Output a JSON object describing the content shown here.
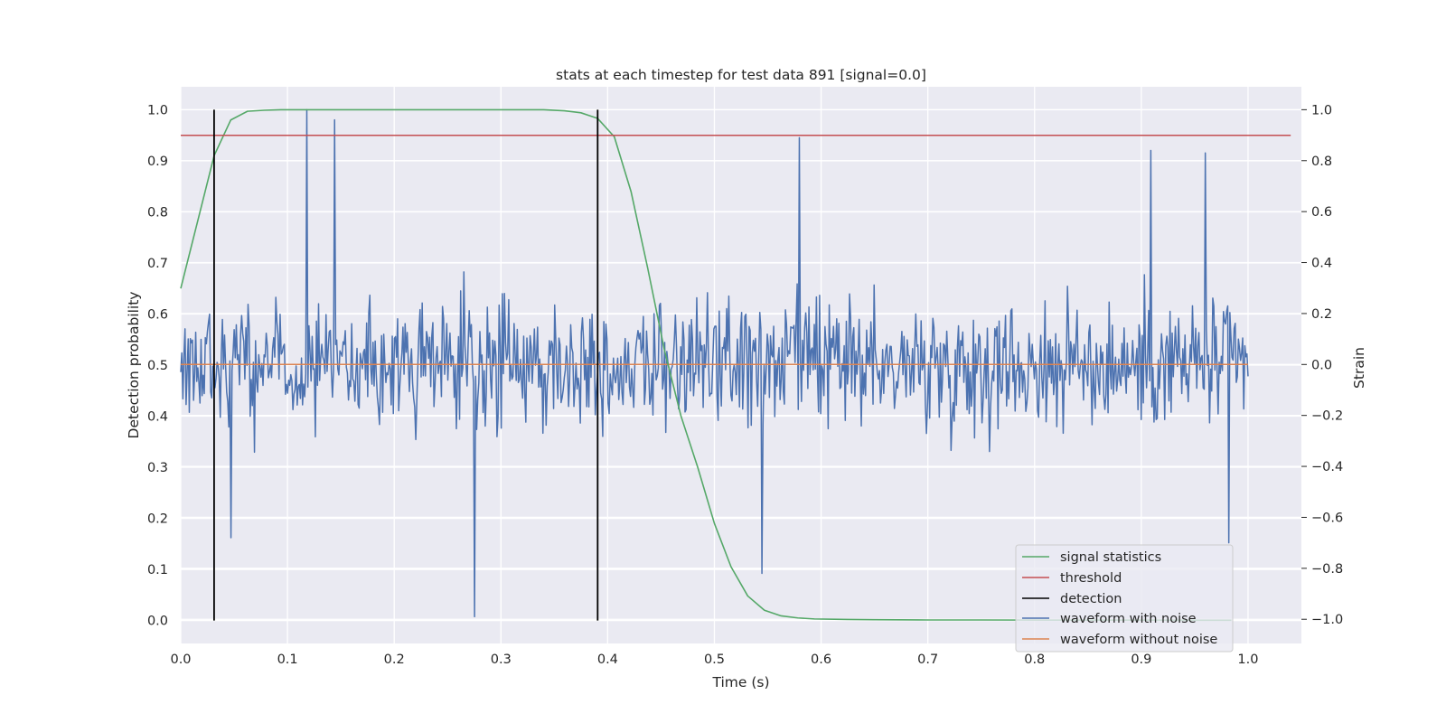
{
  "chart_data": {
    "type": "line",
    "title": "stats at each timestep for test data 891 [signal=0.0]",
    "xlabel": "Time (s)",
    "ylabel_left": "Detection probability",
    "ylabel_right": "Strain",
    "xlim": [
      0.0,
      1.05
    ],
    "ylim_left": [
      -0.045,
      1.045
    ],
    "ylim_right": [
      -1.095,
      1.09
    ],
    "x_ticks": [
      "0.0",
      "0.1",
      "0.2",
      "0.3",
      "0.4",
      "0.5",
      "0.6",
      "0.7",
      "0.8",
      "0.9",
      "1.0"
    ],
    "y_ticks_left": [
      "0.0",
      "0.1",
      "0.2",
      "0.3",
      "0.4",
      "0.5",
      "0.6",
      "0.7",
      "0.8",
      "0.9",
      "1.0"
    ],
    "y_ticks_right": [
      "−1.0",
      "−0.8",
      "−0.6",
      "−0.4",
      "−0.2",
      "0.0",
      "0.2",
      "0.4",
      "0.6",
      "0.8",
      "1.0"
    ],
    "grid": true,
    "legend_position": "lower-right",
    "series": [
      {
        "name": "signal statistics",
        "axis": "left",
        "color": "#55a868",
        "x": [
          0.0,
          0.015625,
          0.03125,
          0.046875,
          0.0625,
          0.078125,
          0.09375,
          0.109375,
          0.125,
          0.15,
          0.2,
          0.25,
          0.3,
          0.34,
          0.359375,
          0.375,
          0.390625,
          0.40625,
          0.421875,
          0.4375,
          0.453125,
          0.46875,
          0.484375,
          0.5,
          0.515625,
          0.53125,
          0.546875,
          0.5625,
          0.578125,
          0.59375,
          0.625,
          0.65,
          0.7,
          0.75,
          0.8,
          0.85,
          0.9,
          0.95,
          0.984375
        ],
        "y": [
          0.65,
          0.78,
          0.91,
          0.98,
          0.997,
          0.999,
          1.0,
          1.0,
          1.0,
          1.0,
          1.0,
          1.0,
          1.0,
          1.0,
          0.998,
          0.994,
          0.983,
          0.947,
          0.84,
          0.69,
          0.53,
          0.4,
          0.3,
          0.19,
          0.105,
          0.048,
          0.02,
          0.009,
          0.005,
          0.003,
          0.002,
          0.0015,
          0.001,
          0.001,
          0.0008,
          0.0006,
          0.0006,
          0.0005,
          0.0004
        ]
      },
      {
        "name": "threshold",
        "axis": "left",
        "color": "#c44e52",
        "x": [
          0.0,
          1.04
        ],
        "y": [
          0.95,
          0.95
        ]
      },
      {
        "name": "detection",
        "axis": "left",
        "color": "#000000",
        "segments": [
          {
            "x": 0.03125,
            "y0": 0.0,
            "y1": 1.0
          },
          {
            "x": 0.390625,
            "y0": 0.0,
            "y1": 1.0
          }
        ]
      },
      {
        "name": "waveform with noise",
        "axis": "right",
        "color": "#4c72b0",
        "x_start": 0.0,
        "x_end": 1.0,
        "n_points": 1000,
        "y_range": [
          -1.0,
          1.0
        ],
        "y_peaks": [
          {
            "x": 0.118,
            "y": 1.0
          },
          {
            "x": 0.144,
            "y": 0.96
          },
          {
            "x": 0.275,
            "y": -0.99
          },
          {
            "x": 0.58,
            "y": 0.89
          },
          {
            "x": 0.545,
            "y": -0.82
          },
          {
            "x": 0.909,
            "y": 0.84
          },
          {
            "x": 0.96,
            "y": 0.83
          },
          {
            "x": 0.982,
            "y": -0.7
          },
          {
            "x": 0.047,
            "y": -0.68
          }
        ]
      },
      {
        "name": "waveform without noise",
        "axis": "right",
        "color": "#dd8452",
        "x": [
          0.0,
          1.0
        ],
        "y": [
          0.0,
          0.0
        ]
      }
    ]
  }
}
